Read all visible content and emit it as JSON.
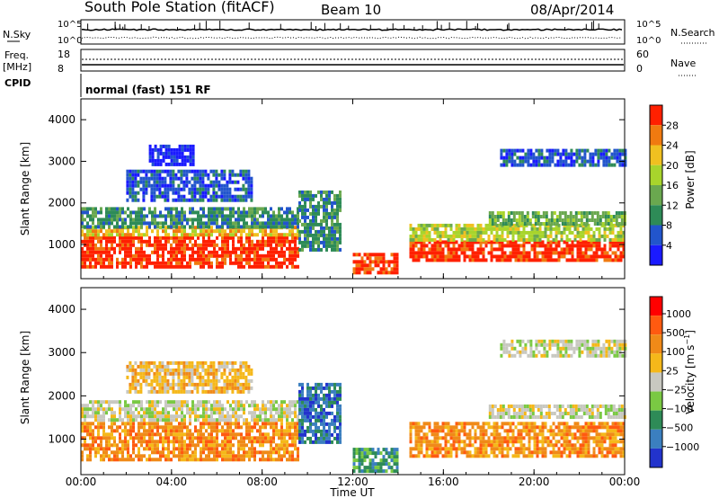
{
  "header": {
    "station": "South Pole Station (fitACF)",
    "beam": "Beam 10",
    "date": "08/Apr/2014"
  },
  "status_panel": {
    "left_labels": [
      "N.Sky",
      "Freq.",
      "[MHz]",
      "CPID"
    ],
    "right_labels": [
      "N.Search",
      "Nave"
    ],
    "sky_ticks": [
      "10^5",
      "10^0"
    ],
    "freq_ticks": [
      "18",
      "8"
    ],
    "nave_ticks": [
      "60",
      "0"
    ],
    "cpid_text": "normal (fast) 151 RF"
  },
  "chart_data": [
    {
      "type": "heatmap",
      "quantity": "Power",
      "unit": "dB",
      "xlabel": "",
      "ylabel": "Slant Range [km]",
      "xlim": [
        0,
        24
      ],
      "ylim": [
        180,
        4500
      ],
      "yticks": [
        1000,
        2000,
        3000,
        4000
      ],
      "colorbar_label": "Power [dB]",
      "colorbar_ticks": [
        "4",
        "8",
        "12",
        "16",
        "20",
        "24",
        "28"
      ],
      "colors": [
        "#1a1aff",
        "#2255cc",
        "#2e8b57",
        "#6aa84f",
        "#a8d42c",
        "#f0c020",
        "#f07a10",
        "#ff2000"
      ],
      "regions": [
        {
          "t": [
            0.0,
            9.6
          ],
          "r": [
            500,
            1200
          ],
          "level": 7
        },
        {
          "t": [
            0.0,
            9.6
          ],
          "r": [
            1200,
            1450
          ],
          "level": 5
        },
        {
          "t": [
            0.0,
            9.6
          ],
          "r": [
            1450,
            1900
          ],
          "level": 2
        },
        {
          "t": [
            2.0,
            7.5
          ],
          "r": [
            2100,
            2800
          ],
          "level": 1
        },
        {
          "t": [
            3.0,
            5.0
          ],
          "r": [
            2900,
            3400
          ],
          "level": 0
        },
        {
          "t": [
            9.6,
            11.5
          ],
          "r": [
            900,
            2300
          ],
          "level": 2
        },
        {
          "t": [
            12.0,
            14.0
          ],
          "r": [
            300,
            800
          ],
          "level": 7
        },
        {
          "t": [
            14.5,
            24.0
          ],
          "r": [
            600,
            1100
          ],
          "level": 7
        },
        {
          "t": [
            14.5,
            24.0
          ],
          "r": [
            1100,
            1500
          ],
          "level": 4
        },
        {
          "t": [
            18.0,
            24.0
          ],
          "r": [
            1500,
            1800
          ],
          "level": 3
        },
        {
          "t": [
            18.5,
            24.0
          ],
          "r": [
            2900,
            3300
          ],
          "level": 1
        }
      ]
    },
    {
      "type": "heatmap",
      "quantity": "Velocity",
      "unit": "m s^-1",
      "xlabel": "Time UT",
      "ylabel": "Slant Range [km]",
      "xlim": [
        0,
        24
      ],
      "ylim": [
        180,
        4500
      ],
      "yticks": [
        1000,
        2000,
        3000,
        4000
      ],
      "xticks": [
        "00:00",
        "04:00",
        "08:00",
        "12:00",
        "16:00",
        "20:00",
        "00:00"
      ],
      "colorbar_label": "Velocity [m s",
      "colorbar_ticks": [
        "1000",
        "500",
        "100",
        "25",
        "−25",
        "−100",
        "−500",
        "−1000"
      ],
      "colors": [
        "#2233cc",
        "#3b7fbf",
        "#2e8b57",
        "#7ac943",
        "#c8c8c0",
        "#f5b81a",
        "#f08a18",
        "#ff5a10",
        "#ff0000"
      ],
      "regions": [
        {
          "t": [
            0.0,
            9.6
          ],
          "r": [
            500,
            1400
          ],
          "level": 6
        },
        {
          "t": [
            0.0,
            9.6
          ],
          "r": [
            1450,
            1900
          ],
          "level": 4
        },
        {
          "t": [
            2.0,
            7.5
          ],
          "r": [
            2100,
            2800
          ],
          "level": 5
        },
        {
          "t": [
            9.6,
            11.5
          ],
          "r": [
            900,
            2300
          ],
          "level": 1
        },
        {
          "t": [
            12.0,
            14.0
          ],
          "r": [
            300,
            800
          ],
          "level": 2
        },
        {
          "t": [
            14.5,
            24.0
          ],
          "r": [
            600,
            1400
          ],
          "level": 6
        },
        {
          "t": [
            18.0,
            24.0
          ],
          "r": [
            1500,
            1800
          ],
          "level": 4
        },
        {
          "t": [
            18.5,
            24.0
          ],
          "r": [
            2900,
            3300
          ],
          "level": 4
        }
      ]
    }
  ]
}
